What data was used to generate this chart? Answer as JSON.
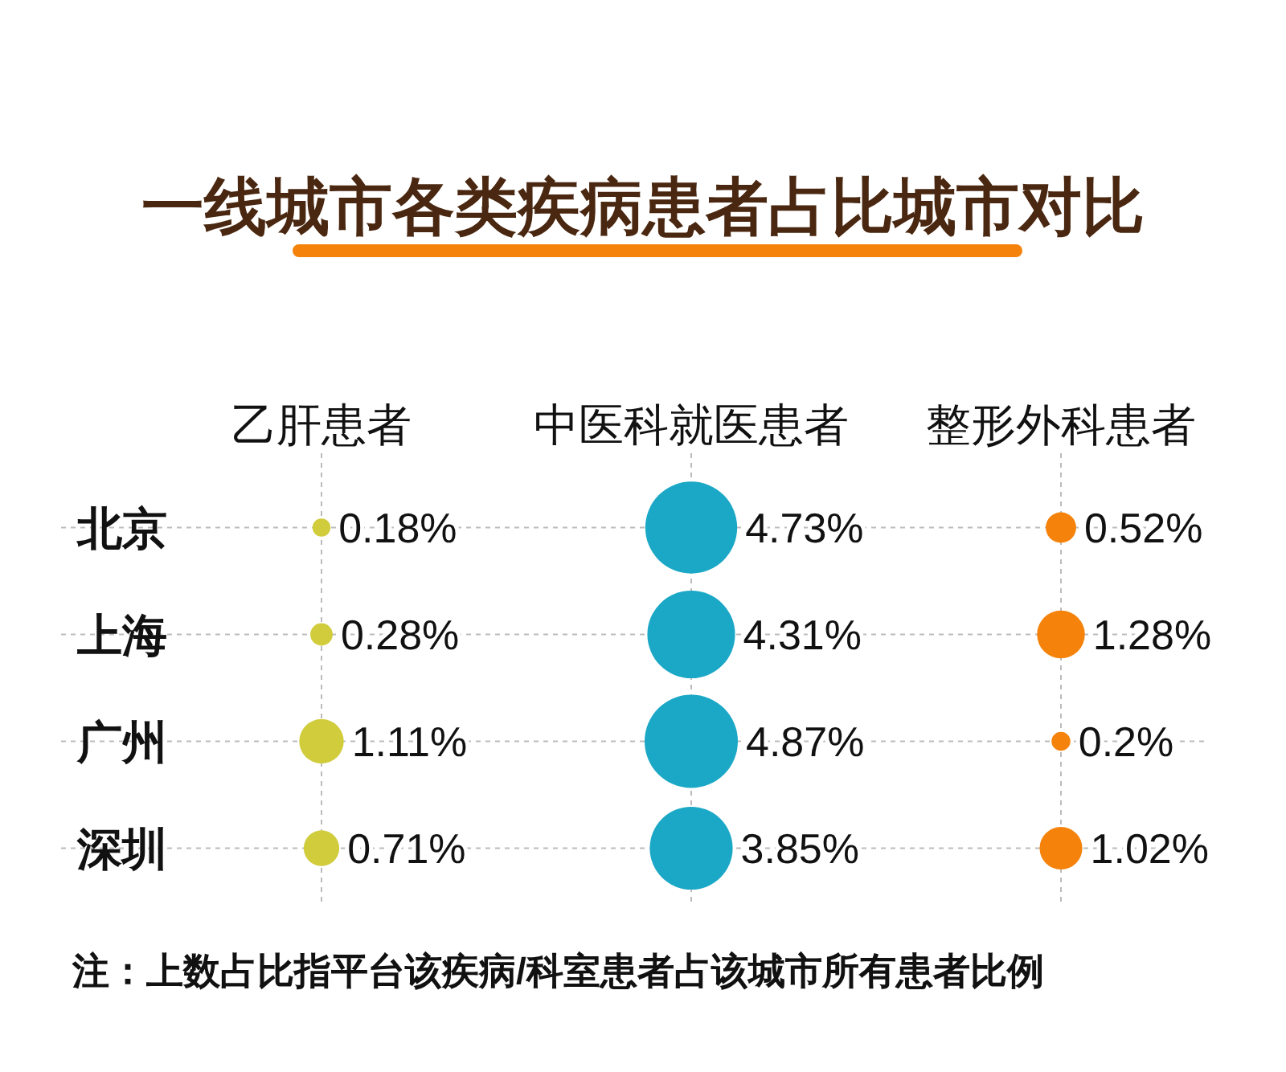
{
  "chart_data": {
    "type": "heatmap",
    "title": "一线城市各类疾病患者占比城市对比",
    "categories": [
      "乙肝患者",
      "中医科就医患者",
      "整形外科患者"
    ],
    "y_categories": [
      "北京",
      "上海",
      "广州",
      "深圳"
    ],
    "cells": [
      [
        0.18,
        4.73,
        0.52
      ],
      [
        0.28,
        4.31,
        1.28
      ],
      [
        1.11,
        4.87,
        0.2
      ],
      [
        0.71,
        3.85,
        1.02
      ]
    ],
    "cell_labels": [
      [
        "0.18%",
        "4.73%",
        "0.52%"
      ],
      [
        "0.28%",
        "4.31%",
        "1.28%"
      ],
      [
        "1.11%",
        "4.87%",
        "0.2%"
      ],
      [
        "0.71%",
        "3.85%",
        "1.02%"
      ]
    ],
    "colors": [
      "#d0cc3c",
      "#1ba8c6",
      "#f5820a"
    ],
    "grid": true,
    "annotations": [
      "注：上数占比指平台该疾病/科室患者占该城市所有患者比例"
    ]
  }
}
